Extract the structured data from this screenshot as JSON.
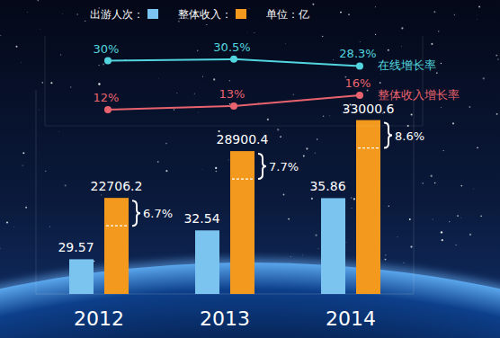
{
  "chart_data": [
    {
      "type": "bar",
      "subtitle": "单位：亿",
      "categories": [
        "2012",
        "2013",
        "2014"
      ],
      "series": [
        {
          "name": "出游人次：",
          "color": "#7cc4f0",
          "values": [
            29.57,
            32.54,
            35.86
          ],
          "axis": "y2"
        },
        {
          "name": "整体收入：",
          "color": "#f39a1e",
          "values": [
            22706.2,
            28900.4,
            33000.6
          ]
        }
      ],
      "annotations": [
        "6.7%",
        "7.7%",
        "8.6%"
      ],
      "ylim": [
        10000,
        37000
      ],
      "yticks": [],
      "y2lim": [
        26,
        47
      ],
      "y2ticks": [],
      "data_labels": true,
      "tick_labels": "x",
      "legend": "top"
    },
    {
      "type": "line",
      "x": [
        2012,
        2013,
        2014
      ],
      "xlim": [
        2011.5,
        2014.5
      ],
      "xticks": [],
      "series": [
        {
          "name": "在线增长率",
          "color": "#52d5de",
          "values": [
            30,
            30.5,
            28.3
          ],
          "value_labels": [
            "30%",
            "30.5%",
            "28.3%"
          ],
          "axis": "y2",
          "marker": "circle"
        },
        {
          "name": "整体收入增长率",
          "color": "#e8636e",
          "values": [
            12,
            13,
            16
          ],
          "value_labels": [
            "12%",
            "13%",
            "16%"
          ],
          "marker": "circle"
        }
      ],
      "ylim": [
        7.5,
        32.5
      ],
      "yticks": [],
      "y2lim": [
        9,
        38
      ],
      "y2ticks": [],
      "data_labels": true,
      "tick_labels": false,
      "legend": "right"
    }
  ]
}
